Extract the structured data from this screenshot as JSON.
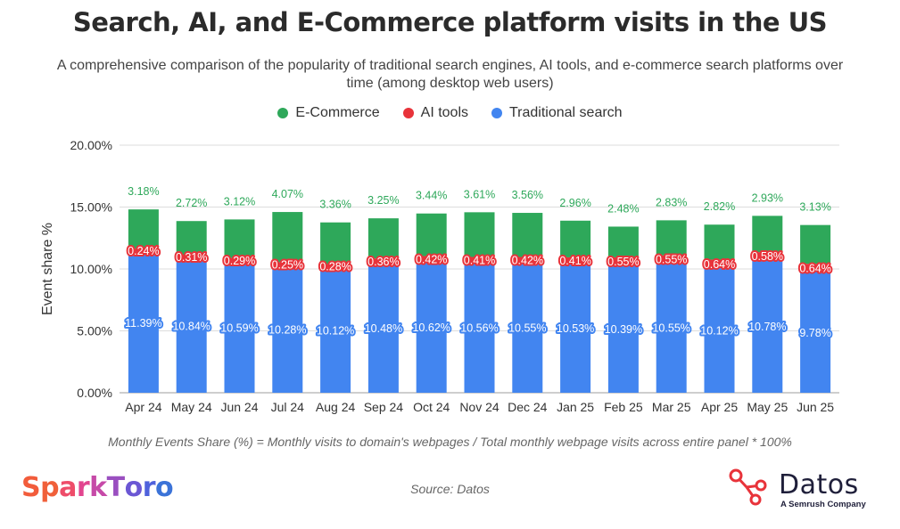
{
  "title": "Search, AI, and E-Commerce platform visits in the US",
  "subtitle": "A comprehensive comparison of the popularity of traditional search engines, AI tools, and e-commerce search platforms over time (among desktop web users)",
  "footnote": "Monthly Events Share (%) = Monthly visits to domain's webpages / Total monthly webpage visits across entire panel * 100%",
  "source": "Source: Datos",
  "logos": {
    "sparktoro": "SparkToro",
    "datos": "Datos",
    "datos_tagline": "A Semrush Company"
  },
  "colors": {
    "ecommerce": "#2ea85a",
    "ai": "#e8333a",
    "search": "#4285f0"
  },
  "chart_data": {
    "type": "bar",
    "stacked": true,
    "categories": [
      "Apr 24",
      "May 24",
      "Jun 24",
      "Jul 24",
      "Aug 24",
      "Sep 24",
      "Oct 24",
      "Nov 24",
      "Dec 24",
      "Jan 25",
      "Feb 25",
      "Mar 25",
      "Apr 25",
      "May 25",
      "Jun 25"
    ],
    "series": [
      {
        "name": "Traditional search",
        "color": "#4285f0",
        "values": [
          11.39,
          10.84,
          10.59,
          10.28,
          10.12,
          10.48,
          10.62,
          10.56,
          10.55,
          10.53,
          10.39,
          10.55,
          10.12,
          10.78,
          9.78
        ],
        "labels": [
          "11.39%",
          "10.84%",
          "10.59%",
          "10.28%",
          "10.12%",
          "10.48%",
          "10.62%",
          "10.56%",
          "10.55%",
          "10.53%",
          "10.39%",
          "10.55%",
          "10.12%",
          "10.78%",
          "9.78%"
        ]
      },
      {
        "name": "AI tools",
        "color": "#e8333a",
        "values": [
          0.24,
          0.31,
          0.29,
          0.25,
          0.28,
          0.36,
          0.42,
          0.41,
          0.42,
          0.41,
          0.55,
          0.55,
          0.64,
          0.58,
          0.64
        ],
        "labels": [
          "0.24%",
          "0.31%",
          "0.29%",
          "0.25%",
          "0.28%",
          "0.36%",
          "0.42%",
          "0.41%",
          "0.42%",
          "0.41%",
          "0.55%",
          "0.55%",
          "0.64%",
          "0.58%",
          "0.64%"
        ]
      },
      {
        "name": "E-Commerce",
        "color": "#2ea85a",
        "values": [
          3.18,
          2.72,
          3.12,
          4.07,
          3.36,
          3.25,
          3.44,
          3.61,
          3.56,
          2.96,
          2.48,
          2.83,
          2.82,
          2.93,
          3.13
        ],
        "labels": [
          "3.18%",
          "2.72%",
          "3.12%",
          "4.07%",
          "3.36%",
          "3.25%",
          "3.44%",
          "3.61%",
          "3.56%",
          "2.96%",
          "2.48%",
          "2.83%",
          "2.82%",
          "2.93%",
          "3.13%"
        ]
      }
    ],
    "legend": [
      "E-Commerce",
      "AI tools",
      "Traditional search"
    ],
    "legend_position": "top-center",
    "ylabel": "Event share %",
    "yticks": [
      "0.00%",
      "5.00%",
      "10.00%",
      "15.00%",
      "20.00%"
    ],
    "ylim": [
      0,
      20
    ],
    "grid": true
  }
}
